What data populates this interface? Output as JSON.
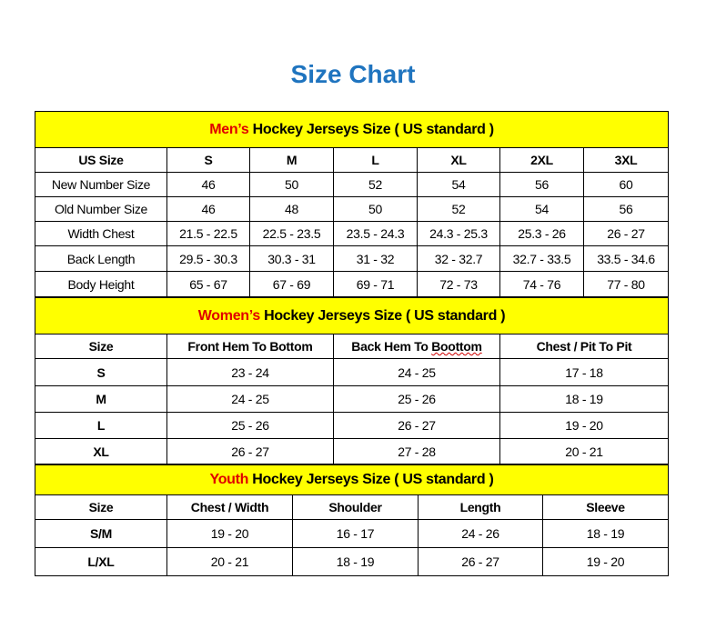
{
  "title": "Size Chart",
  "colors": {
    "title": "#1f74bf",
    "section_bg": "#ffff00",
    "highlight": "#e00000"
  },
  "men": {
    "section_highlight": "Men’s",
    "section_rest": " Hockey Jerseys Size ( US standard )",
    "headers": [
      "US Size",
      "S",
      "M",
      "L",
      "XL",
      "2XL",
      "3XL"
    ],
    "rows": [
      [
        "New Number Size",
        "46",
        "50",
        "52",
        "54",
        "56",
        "60"
      ],
      [
        "Old Number Size",
        "46",
        "48",
        "50",
        "52",
        "54",
        "56"
      ],
      [
        "Width Chest",
        "21.5 - 22.5",
        "22.5 - 23.5",
        "23.5 - 24.3",
        "24.3 - 25.3",
        "25.3 - 26",
        "26 - 27"
      ],
      [
        "Back Length",
        "29.5 - 30.3",
        "30.3 - 31",
        "31 - 32",
        "32 - 32.7",
        "32.7 - 33.5",
        "33.5 - 34.6"
      ],
      [
        "Body Height",
        "65 - 67",
        "67 - 69",
        "69 - 71",
        "72 - 73",
        "74 - 76",
        "77 - 80"
      ]
    ]
  },
  "women": {
    "section_highlight": "Women’s",
    "section_rest": " Hockey Jerseys Size ( US standard )",
    "headers": [
      "Size",
      "Front Hem To Bottom",
      "Back Hem To ",
      "Chest / Pit To Pit"
    ],
    "header_misspelled": "Boottom",
    "rows": [
      [
        "S",
        "23 - 24",
        "24 - 25",
        "17 - 18"
      ],
      [
        "M",
        "24 - 25",
        "25 - 26",
        "18 - 19"
      ],
      [
        "L",
        "25 - 26",
        "26 - 27",
        "19 - 20"
      ],
      [
        "XL",
        "26 - 27",
        "27 - 28",
        "20 - 21"
      ]
    ]
  },
  "youth": {
    "section_highlight": "Youth",
    "section_rest": " Hockey Jerseys Size ( US standard )",
    "headers": [
      "Size",
      "Chest / Width",
      "Shoulder",
      "Length",
      "Sleeve"
    ],
    "rows": [
      [
        "S/M",
        "19 - 20",
        "16 - 17",
        "24 - 26",
        "18 - 19"
      ],
      [
        "L/XL",
        "20 - 21",
        "18 - 19",
        "26 - 27",
        "19 - 20"
      ]
    ]
  }
}
